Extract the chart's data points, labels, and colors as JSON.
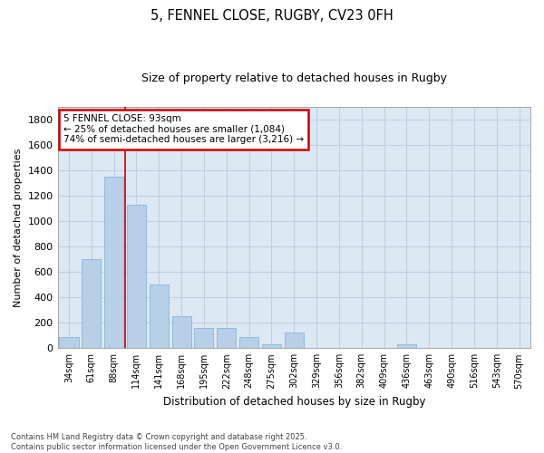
{
  "title1": "5, FENNEL CLOSE, RUGBY, CV23 0FH",
  "title2": "Size of property relative to detached houses in Rugby",
  "xlabel": "Distribution of detached houses by size in Rugby",
  "ylabel": "Number of detached properties",
  "footnote": "Contains HM Land Registry data © Crown copyright and database right 2025.\nContains public sector information licensed under the Open Government Licence v3.0.",
  "bar_color": "#b8cfe8",
  "bar_edge_color": "#7aafd4",
  "grid_color": "#c0d0e0",
  "background_color": "#dce8f4",
  "annotation_box_color": "#cc0000",
  "vline_color": "#cc0000",
  "categories": [
    "34sqm",
    "61sqm",
    "88sqm",
    "114sqm",
    "141sqm",
    "168sqm",
    "195sqm",
    "222sqm",
    "248sqm",
    "275sqm",
    "302sqm",
    "329sqm",
    "356sqm",
    "382sqm",
    "409sqm",
    "436sqm",
    "463sqm",
    "490sqm",
    "516sqm",
    "543sqm",
    "570sqm"
  ],
  "values": [
    90,
    700,
    1350,
    1130,
    500,
    250,
    160,
    160,
    90,
    30,
    120,
    0,
    0,
    0,
    0,
    30,
    0,
    0,
    0,
    0,
    0
  ],
  "ylim": [
    0,
    1900
  ],
  "yticks": [
    0,
    200,
    400,
    600,
    800,
    1000,
    1200,
    1400,
    1600,
    1800
  ],
  "vline_x_index": 2.5,
  "annotation_text": "5 FENNEL CLOSE: 93sqm\n← 25% of detached houses are smaller (1,084)\n74% of semi-detached houses are larger (3,216) →",
  "figsize": [
    6.0,
    5.0
  ],
  "dpi": 100
}
